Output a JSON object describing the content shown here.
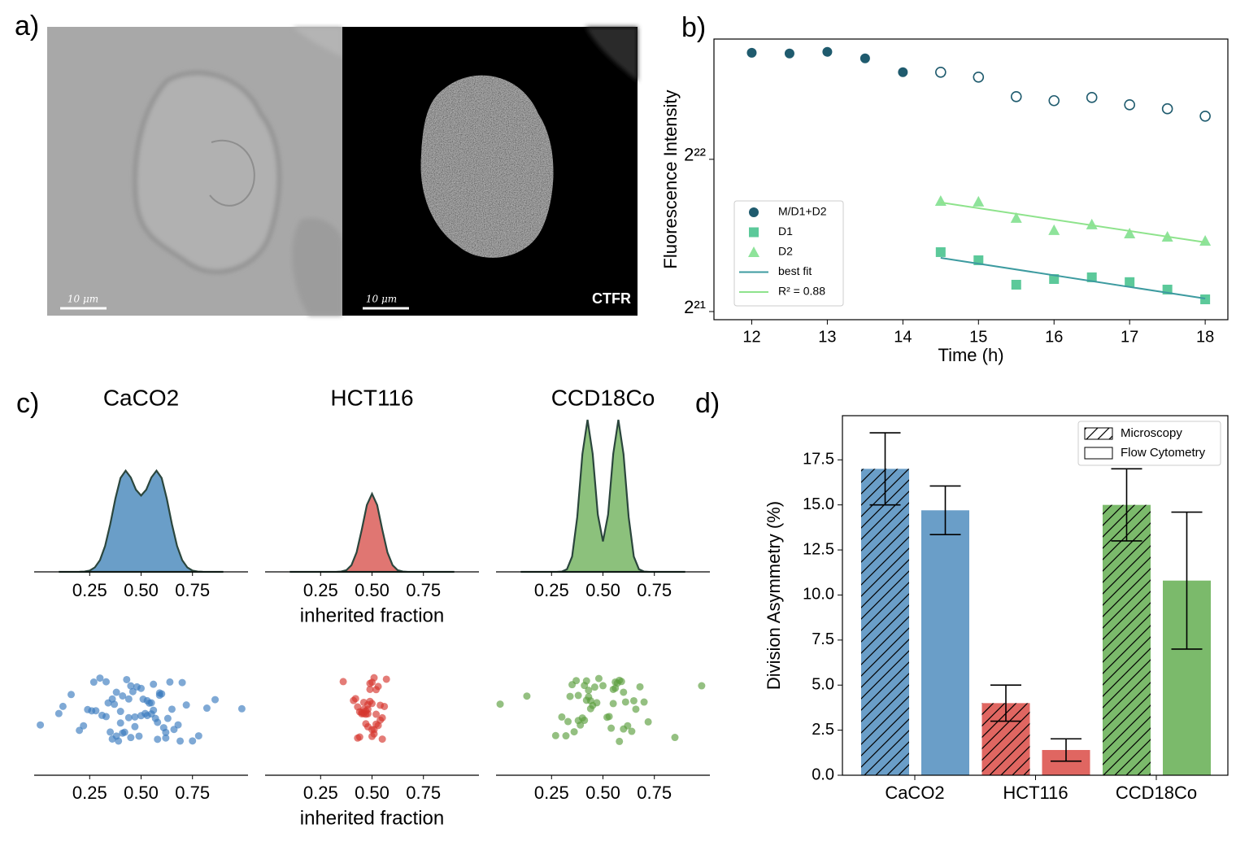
{
  "image_panel": {
    "label": "a)",
    "scale_bars": [
      "10 μm",
      "10 μm"
    ],
    "channel": "CTFR"
  },
  "chart_data": [
    {
      "type": "scatter",
      "panel_label": "b)",
      "xlabel": "Time (h)",
      "ylabel": "Fluorescence Intensity",
      "xlim": [
        11.5,
        18.3
      ],
      "xticks": [
        12,
        13,
        14,
        15,
        16,
        17,
        18
      ],
      "yscale": "log",
      "log_base": 2,
      "ylim": [
        2021000,
        7252000
      ],
      "yticks": [
        {
          "value": 2097152,
          "label": "2²¹"
        },
        {
          "value": 4194304,
          "label": "2²²"
        }
      ],
      "legend": "lower left",
      "series": [
        {
          "name": "M/D1+D2",
          "marker": "circle",
          "color": "#1f5b6e",
          "x": [
            12,
            12.5,
            13,
            13.5,
            14,
            14.5,
            15,
            15.5,
            16,
            16.5,
            17,
            17.5,
            18
          ],
          "values": [
            6813000,
            6791000,
            6842000,
            6641000,
            6235000,
            6235000,
            6098000,
            5580000,
            5478000,
            5558000,
            5376000,
            5280000,
            5105000
          ],
          "filled": [
            true,
            true,
            true,
            true,
            true,
            false,
            false,
            false,
            false,
            false,
            false,
            false,
            false
          ]
        },
        {
          "name": "D1",
          "marker": "square",
          "color": "#5cc99a",
          "x": [
            14.5,
            15,
            15.5,
            16,
            16.5,
            17,
            17.5,
            18
          ],
          "values": [
            2749000,
            2649000,
            2370000,
            2432000,
            2451000,
            2398000,
            2318000,
            2217000
          ]
        },
        {
          "name": "D2",
          "marker": "triangle",
          "color": "#8ee39a",
          "x": [
            14.5,
            15,
            15.5,
            16,
            16.5,
            17,
            17.5,
            18
          ],
          "values": [
            3471000,
            3459000,
            3212000,
            3039000,
            3118000,
            2993000,
            2949000,
            2895000
          ]
        },
        {
          "name": "best fit",
          "marker": "line",
          "color": "#3d9ba0",
          "x": [
            14.5,
            18
          ],
          "values": [
            2678000,
            2225000
          ]
        },
        {
          "name": "R² = 0.88",
          "marker": "line",
          "color": "#8ee38c",
          "x": [
            14.5,
            18
          ],
          "values": [
            3446000,
            2874000
          ]
        }
      ]
    },
    {
      "type": "kde",
      "panel_label": "c)",
      "title": "CaCO2",
      "color": "#6a9ec8",
      "edgecolor": "#2b463d",
      "xlim": [
        -0.02,
        1.02
      ],
      "ylim": [
        0,
        10
      ],
      "xticks": [
        0.25,
        {
          "value": 0.5,
          "label": "0.50"
        },
        0.75
      ],
      "x": [
        0.1,
        0.125,
        0.15,
        0.175,
        0.2,
        0.225,
        0.25,
        0.275,
        0.3,
        0.325,
        0.35,
        0.375,
        0.4,
        0.425,
        0.45,
        0.475,
        0.5,
        0.525,
        0.55,
        0.575,
        0.6,
        0.625,
        0.65,
        0.675,
        0.7,
        0.725,
        0.75,
        0.775,
        0.8,
        0.825,
        0.85,
        0.875,
        0.9
      ],
      "values": [
        0,
        0,
        0,
        0,
        0.005,
        0.02,
        0.08,
        0.27,
        0.72,
        1.59,
        2.93,
        4.5,
        5.77,
        6.22,
        5.8,
        5.05,
        4.69,
        5.05,
        5.8,
        6.22,
        5.77,
        4.5,
        2.93,
        1.59,
        0.72,
        0.27,
        0.08,
        0.02,
        0.005,
        0,
        0,
        0,
        0
      ]
    },
    {
      "type": "kde",
      "title": "HCT116",
      "xlabel": "inherited fraction",
      "color": "#e07672",
      "edgecolor": "#2b463d",
      "xlim": [
        -0.02,
        1.02
      ],
      "ylim": [
        0,
        10
      ],
      "xticks": [
        0.25,
        {
          "value": 0.5,
          "label": "0.50"
        },
        0.75
      ],
      "x": [
        0.1,
        0.125,
        0.15,
        0.175,
        0.2,
        0.225,
        0.25,
        0.275,
        0.3,
        0.325,
        0.35,
        0.375,
        0.4,
        0.425,
        0.45,
        0.475,
        0.5,
        0.525,
        0.55,
        0.575,
        0.6,
        0.625,
        0.65,
        0.675,
        0.7,
        0.725,
        0.75,
        0.775,
        0.8,
        0.825,
        0.85,
        0.875,
        0.9
      ],
      "values": [
        0,
        0,
        0,
        0,
        0,
        0,
        0,
        0,
        0,
        0,
        0.02,
        0.1,
        0.41,
        1.2,
        2.59,
        4.11,
        4.8,
        4.11,
        2.59,
        1.2,
        0.41,
        0.1,
        0.02,
        0,
        0,
        0,
        0,
        0,
        0,
        0,
        0,
        0,
        0
      ]
    },
    {
      "type": "kde",
      "title": "CCD18Co",
      "color": "#8cc17c",
      "edgecolor": "#2b463d",
      "xlim": [
        -0.02,
        1.02
      ],
      "ylim": [
        0,
        10
      ],
      "xticks": [
        0.25,
        {
          "value": 0.5,
          "label": "0.50"
        },
        0.75
      ],
      "x": [
        0.1,
        0.125,
        0.15,
        0.175,
        0.2,
        0.225,
        0.25,
        0.275,
        0.3,
        0.325,
        0.35,
        0.375,
        0.4,
        0.425,
        0.45,
        0.475,
        0.5,
        0.525,
        0.55,
        0.575,
        0.6,
        0.625,
        0.65,
        0.675,
        0.7,
        0.725,
        0.75,
        0.775,
        0.8,
        0.825,
        0.85,
        0.875,
        0.9
      ],
      "values": [
        0,
        0,
        0,
        0,
        0,
        0,
        0,
        0,
        0.02,
        0.16,
        0.94,
        3.37,
        7.24,
        9.35,
        7.25,
        3.52,
        1.87,
        3.52,
        7.25,
        9.35,
        7.24,
        3.37,
        0.94,
        0.16,
        0.02,
        0,
        0,
        0,
        0,
        0,
        0,
        0,
        0
      ]
    },
    {
      "type": "strip",
      "color": "#3a7bbf",
      "xlim": [
        -0.02,
        1.02
      ],
      "xticks": [
        0.25,
        {
          "value": 0.5,
          "label": "0.50"
        },
        0.75
      ],
      "values": [
        0.01,
        0.1,
        0.12,
        0.16,
        0.2,
        0.22,
        0.24,
        0.26,
        0.28,
        0.3,
        0.31,
        0.33,
        0.34,
        0.35,
        0.36,
        0.37,
        0.38,
        0.39,
        0.4,
        0.41,
        0.42,
        0.43,
        0.44,
        0.45,
        0.46,
        0.47,
        0.48,
        0.49,
        0.5,
        0.51,
        0.52,
        0.53,
        0.54,
        0.55,
        0.56,
        0.57,
        0.58,
        0.59,
        0.6,
        0.61,
        0.62,
        0.63,
        0.64,
        0.65,
        0.66,
        0.68,
        0.7,
        0.72,
        0.75,
        0.78,
        0.82,
        0.86,
        0.99,
        0.33,
        0.38,
        0.41,
        0.44,
        0.47,
        0.53,
        0.56,
        0.59,
        0.62,
        0.36,
        0.45,
        0.58,
        0.27,
        0.69,
        0.4,
        0.55,
        0.5
      ]
    },
    {
      "type": "strip",
      "xlabel": "inherited fraction",
      "color": "#d6352e",
      "xlim": [
        -0.02,
        1.02
      ],
      "xticks": [
        0.25,
        {
          "value": 0.5,
          "label": "0.50"
        },
        0.75
      ],
      "values": [
        0.36,
        0.41,
        0.42,
        0.43,
        0.44,
        0.45,
        0.46,
        0.47,
        0.48,
        0.49,
        0.5,
        0.51,
        0.52,
        0.53,
        0.54,
        0.55,
        0.56,
        0.44,
        0.46,
        0.47,
        0.48,
        0.49,
        0.5,
        0.5,
        0.51,
        0.52,
        0.53,
        0.45,
        0.48,
        0.51,
        0.55,
        0.57,
        0.46,
        0.49,
        0.52,
        0.47,
        0.5,
        0.43,
        0.54,
        0.48
      ]
    },
    {
      "type": "strip",
      "color": "#5a9e3e",
      "xlim": [
        -0.02,
        1.02
      ],
      "xticks": [
        0.25,
        {
          "value": 0.5,
          "label": "0.50"
        },
        0.75
      ],
      "values": [
        0.0,
        0.13,
        0.27,
        0.3,
        0.32,
        0.33,
        0.35,
        0.36,
        0.37,
        0.38,
        0.39,
        0.4,
        0.41,
        0.42,
        0.43,
        0.44,
        0.45,
        0.46,
        0.48,
        0.5,
        0.52,
        0.54,
        0.55,
        0.56,
        0.57,
        0.58,
        0.59,
        0.6,
        0.61,
        0.62,
        0.64,
        0.66,
        0.68,
        0.7,
        0.72,
        0.85,
        0.98,
        0.38,
        0.42,
        0.44,
        0.41,
        0.56,
        0.58,
        0.6,
        0.55,
        0.34,
        0.65,
        0.47,
        0.53,
        0.43
      ]
    },
    {
      "type": "grouped_bar",
      "panel_label": "d)",
      "ylabel": "Division Asymmetry (%)",
      "categories": [
        "CaCO2",
        "HCT116",
        "CCD18Co"
      ],
      "colors": [
        "#6a9ec8",
        "#e06661",
        "#7bba6b"
      ],
      "ylim": [
        0,
        19.95
      ],
      "yticks": [
        {
          "value": 0,
          "label": "0.0"
        },
        2.5,
        {
          "value": 5,
          "label": "5.0"
        },
        7.5,
        {
          "value": 10,
          "label": "10.0"
        },
        12.5,
        {
          "value": 15,
          "label": "15.0"
        },
        17.5
      ],
      "legend": "upper right",
      "series": [
        {
          "name": "Microscopy",
          "hatched": true,
          "values": [
            17,
            4,
            15
          ],
          "errors": [
            2,
            1,
            2
          ]
        },
        {
          "name": "Flow Cytometry",
          "hatched": false,
          "values": [
            14.7,
            1.4,
            10.8
          ],
          "errors": [
            1.35,
            0.62,
            3.8
          ]
        }
      ]
    }
  ]
}
